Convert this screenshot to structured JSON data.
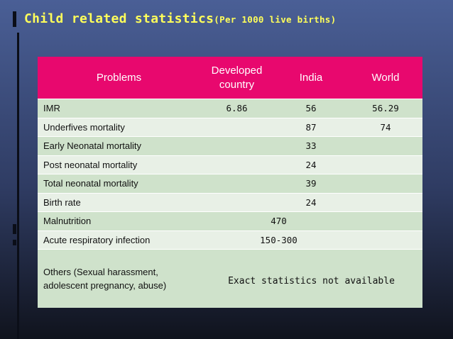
{
  "slide": {
    "title": "Child related statistics",
    "title_suffix": "(Per 1000 live births)"
  },
  "table": {
    "columns": [
      "Problems",
      "Developed country",
      "India",
      "World"
    ],
    "rows": [
      {
        "problem": "IMR",
        "developed": "6.86",
        "india": "56",
        "world": "56.29"
      },
      {
        "problem": "Underfives mortality",
        "developed": "",
        "india": "87",
        "world": "74"
      },
      {
        "problem": "Early Neonatal mortality",
        "developed": "",
        "india": "33",
        "world": ""
      },
      {
        "problem": "Post neonatal mortality",
        "developed": "",
        "india": "24",
        "world": ""
      },
      {
        "problem": "Total neonatal mortality",
        "developed": "",
        "india": "39",
        "world": ""
      },
      {
        "problem": "Birth rate",
        "developed": "",
        "india": "24",
        "world": ""
      },
      {
        "problem": "Malnutrition",
        "combined": "470"
      },
      {
        "problem": "Acute respiratory infection",
        "combined": "150-300"
      },
      {
        "problem": "Others (Sexual harassment, adolescent pregnancy, abuse)",
        "combined": "Exact statistics not available"
      }
    ]
  },
  "colors": {
    "title": "#ffff5a",
    "header_bg": "#e8086e",
    "row_odd": "#cfe2cb",
    "row_even": "#e8f0e6"
  }
}
